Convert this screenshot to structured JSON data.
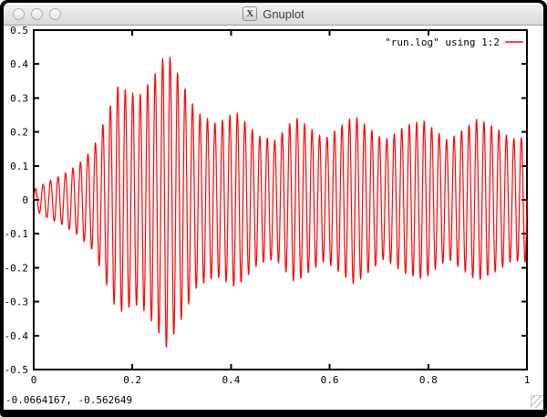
{
  "window": {
    "title": "Gnuplot",
    "x11_icon_glyph": "X"
  },
  "status": {
    "coordinates": "-0.0664167, -0.562649"
  },
  "chart_data": {
    "type": "line",
    "title": "",
    "xlabel": "",
    "ylabel": "",
    "xlim": [
      0,
      1
    ],
    "ylim": [
      -0.5,
      0.5
    ],
    "grid": false,
    "legend_position": "top-right",
    "x_tick_labels": [
      "0",
      "0.2",
      "0.4",
      "0.6",
      "0.8",
      "1"
    ],
    "x_tick_values": [
      0,
      0.2,
      0.4,
      0.6,
      0.8,
      1
    ],
    "y_tick_labels": [
      "0.5",
      "0.4",
      "0.3",
      "0.2",
      "0.1",
      "0",
      "-0.1",
      "-0.2",
      "-0.3",
      "-0.4",
      "-0.5"
    ],
    "y_tick_values": [
      0.5,
      0.4,
      0.3,
      0.2,
      0.1,
      0,
      -0.1,
      -0.2,
      -0.3,
      -0.4,
      -0.5
    ],
    "series": [
      {
        "name": "\"run.log\" using 1:2",
        "color": "#ff0000",
        "signal_model": "amplitude_modulated_sine",
        "carrier_cycles_per_unit_x": 66,
        "envelope_x": [
          0.0,
          0.03,
          0.06,
          0.09,
          0.12,
          0.145,
          0.17,
          0.2,
          0.215,
          0.245,
          0.27,
          0.3,
          0.33,
          0.37,
          0.41,
          0.455,
          0.49,
          0.53,
          0.59,
          0.65,
          0.71,
          0.755,
          0.79,
          0.84,
          0.9,
          0.94,
          0.97,
          1.0
        ],
        "envelope_amp": [
          0.03,
          0.055,
          0.075,
          0.105,
          0.15,
          0.24,
          0.335,
          0.315,
          0.31,
          0.37,
          0.44,
          0.35,
          0.26,
          0.225,
          0.26,
          0.19,
          0.175,
          0.245,
          0.18,
          0.25,
          0.175,
          0.22,
          0.235,
          0.175,
          0.24,
          0.21,
          0.18,
          0.185
        ]
      }
    ]
  }
}
